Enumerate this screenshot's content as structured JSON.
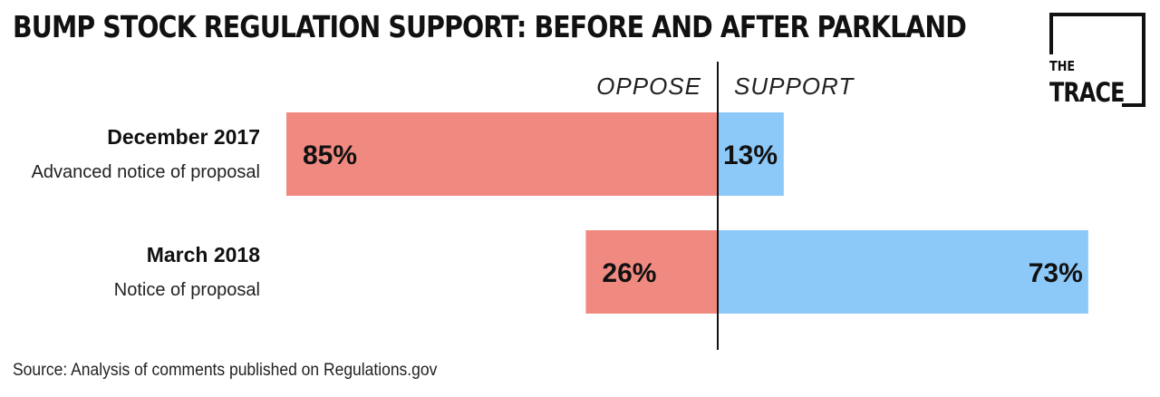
{
  "chart_data": {
    "type": "bar",
    "title": "BUMP STOCK REGULATION SUPPORT: BEFORE AND AFTER PARKLAND",
    "orientation": "diverging-horizontal",
    "column_labels": {
      "left": "OPPOSE",
      "right": "SUPPORT"
    },
    "categories": [
      {
        "label": "December 2017",
        "sublabel": "Advanced notice of proposal"
      },
      {
        "label": "March 2018",
        "sublabel": "Notice of proposal"
      }
    ],
    "series": [
      {
        "name": "OPPOSE",
        "values": [
          85,
          26
        ],
        "labels": [
          "85%",
          "26%"
        ],
        "color": "#F08A81"
      },
      {
        "name": "SUPPORT",
        "values": [
          13,
          73
        ],
        "labels": [
          "13%",
          "73%"
        ],
        "color": "#8CC8F8"
      }
    ],
    "unit": "%",
    "source": "Source: Analysis of comments published on Regulations.gov"
  },
  "logo": {
    "line1": "THE",
    "line2": "TRACE"
  }
}
